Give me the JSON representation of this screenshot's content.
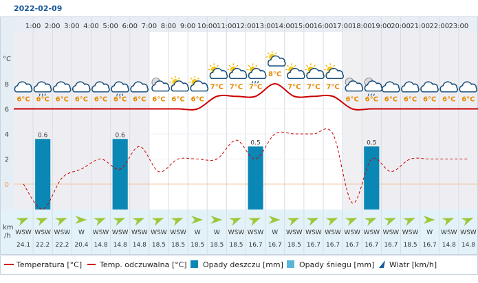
{
  "date": "2022-02-09",
  "y_unit_temp": "°C",
  "y_unit_wind": "km\n/h",
  "chart_data": {
    "type": "line",
    "hours": [
      "1:00",
      "2:00",
      "3:00",
      "4:00",
      "5:00",
      "6:00",
      "7:00",
      "8:00",
      "9:00",
      "10:00",
      "11:00",
      "12:00",
      "13:00",
      "14:00",
      "15:00",
      "16:00",
      "17:00",
      "18:00",
      "19:00",
      "20:00",
      "21:00",
      "22:00",
      "23:00"
    ],
    "y_ticks": [
      0,
      2,
      4,
      6,
      8
    ],
    "ylim": [
      -2.5,
      10
    ],
    "temperature": [
      6,
      6,
      6,
      6,
      6,
      6,
      6,
      6,
      6,
      6,
      7,
      7,
      7,
      8,
      7,
      7,
      7,
      6,
      6,
      6,
      6,
      6,
      6,
      6
    ],
    "temperature_labels": [
      "6°C",
      "6°C",
      "6°C",
      "6°C",
      "6°C",
      "6°C",
      "6°C",
      "6°C",
      "6°C",
      "6°C",
      "7°C",
      "7°C",
      "7°C",
      "8°C",
      "7°C",
      "7°C",
      "7°C",
      "6°C",
      "6°C",
      "6°C",
      "6°C",
      "6°C",
      "6°C",
      "6°C"
    ],
    "feels_like": [
      0,
      -2,
      0.5,
      1.2,
      2,
      1.2,
      3,
      1,
      2,
      2,
      2,
      3.5,
      2,
      4,
      4,
      4,
      4,
      -1.5,
      2,
      1,
      2,
      2,
      2,
      2
    ],
    "rain_mm": [
      0,
      0.6,
      0,
      0,
      0,
      0.6,
      0,
      0,
      0,
      0,
      0,
      0,
      0.5,
      0,
      0,
      0,
      0,
      0,
      0.5,
      0,
      0,
      0,
      0,
      0
    ],
    "rain_labels": [
      "",
      "0.6",
      "",
      "",
      "",
      "0.6",
      "",
      "",
      "",
      "",
      "",
      "",
      "0.5",
      "",
      "",
      "",
      "",
      "",
      "0.5",
      "",
      "",
      "",
      "",
      ""
    ],
    "snow_mm": [
      0,
      0,
      0,
      0,
      0,
      0,
      0,
      0,
      0,
      0,
      0,
      0,
      0,
      0,
      0,
      0,
      0,
      0,
      0,
      0,
      0,
      0,
      0,
      0
    ],
    "wind_dir": [
      "WSW",
      "WSW",
      "WSW",
      "W",
      "WSW",
      "WSW",
      "WSW",
      "WSW",
      "WSW",
      "W",
      "W",
      "WSW",
      "WSW",
      "W",
      "WSW",
      "WSW",
      "WSW",
      "WSW",
      "WSW",
      "WSW",
      "WSW",
      "W",
      "WSW",
      "WSW"
    ],
    "wind_speed": [
      "24.1",
      "22.2",
      "22.2",
      "20.4",
      "14.8",
      "14.8",
      "14.8",
      "18.5",
      "18.5",
      "18.5",
      "18.5",
      "18.5",
      "16.7",
      "16.7",
      "18.5",
      "16.7",
      "16.7",
      "16.7",
      "16.7",
      "16.7",
      "18.5",
      "16.7",
      "14.8",
      "14.8"
    ],
    "icons": [
      "cloud",
      "cloud-rain",
      "cloud",
      "cloud",
      "cloud",
      "cloud-rain",
      "cloud",
      "night-cloud",
      "sun-cloud",
      "sun-cloud",
      "sun-cloud",
      "sun-cloud",
      "sun-cloud-rain",
      "sun-cloud",
      "sun-cloud",
      "sun-cloud",
      "sun-cloud",
      "night-cloud",
      "night-cloud-rain",
      "cloud",
      "cloud",
      "cloud",
      "cloud",
      "cloud"
    ],
    "freezing_level": 0
  },
  "legend": {
    "temperature": "Temperatura [°C]",
    "feels_like": "Temp. odczuwalna [°C]",
    "rain": "Opady deszczu [mm]",
    "snow": "Opady śniegu [mm]",
    "wind": "Wiatr [km/h]"
  },
  "colors": {
    "temperature": "#cc0000",
    "feels_like": "#cc0000",
    "rain": "#0a87b5",
    "snow": "#5ab6d8",
    "wind_arrow": "#9dc83a",
    "night_bg": "#eeeef2",
    "day_bg": "#ffffff",
    "freezing": "#f2a15a",
    "label_orange": "#e88a00"
  }
}
